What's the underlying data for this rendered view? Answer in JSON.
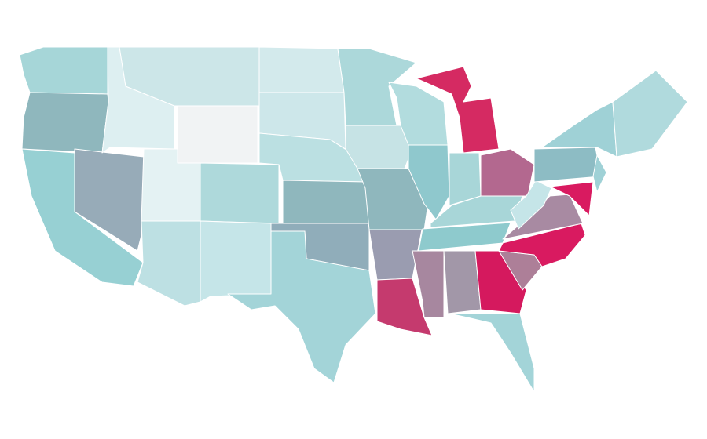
{
  "map": {
    "fills": [
      "#a6d6d8",
      "#8fb7bd",
      "#97d0d3",
      "#97abb8",
      "#ddeff1",
      "#cce6e8",
      "#f1f3f4",
      "#e4f2f3",
      "#bde0e3",
      "#aed9db",
      "#c5e5e8",
      "#d3eaec",
      "#cde7ea",
      "#bbe0e2",
      "#8fb7bd",
      "#90adba",
      "#a3d4d8",
      "#acd8da",
      "#c6e3e5",
      "#8fb7bd",
      "#9a9cb0",
      "#c53a6e",
      "#b2dcde",
      "#8fc8cd",
      "#d52a62",
      "#a8d6d8",
      "#b3688f",
      "#a8d6d8",
      "#8ecacd",
      "#a7879f",
      "#a297a8",
      "#d5195e",
      "#a3d4d8",
      "#ad7f98",
      "#d91a60",
      "#a88aa2",
      "#c5e5e8",
      "#8dbcc4",
      "#9fd1d6",
      "#9fd1d6",
      "#d91a60",
      "#b0dadd"
    ]
  }
}
